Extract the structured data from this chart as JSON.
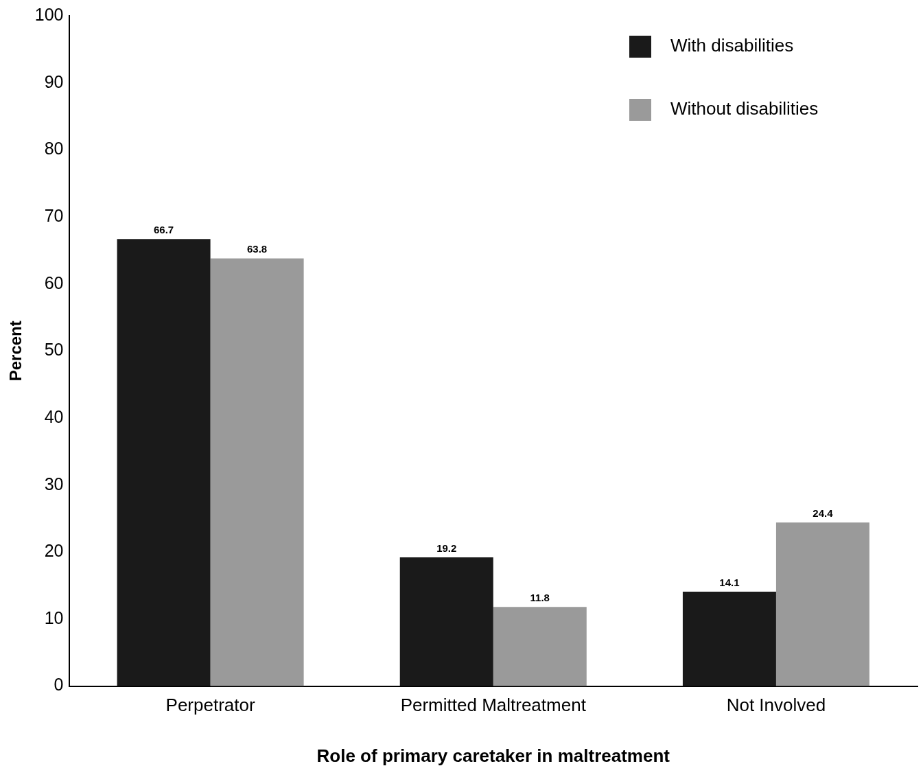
{
  "chart_data": {
    "type": "bar",
    "xlabel": "Role of primary caretaker in maltreatment",
    "ylabel": "Percent",
    "categories": [
      "Perpetrator",
      "Permitted Maltreatment",
      "Not Involved"
    ],
    "series": [
      {
        "name": "With disabilities",
        "color": "#1a1a1a",
        "values": [
          66.7,
          19.2,
          14.1
        ]
      },
      {
        "name": "Without disabilities",
        "color": "#9a9a9a",
        "values": [
          63.8,
          11.8,
          24.4
        ]
      }
    ],
    "ylim": [
      0,
      100
    ],
    "yticks": [
      0,
      10,
      20,
      30,
      40,
      50,
      60,
      70,
      80,
      90,
      100
    ],
    "grid": false,
    "legend": "top right",
    "data_labels": true
  }
}
